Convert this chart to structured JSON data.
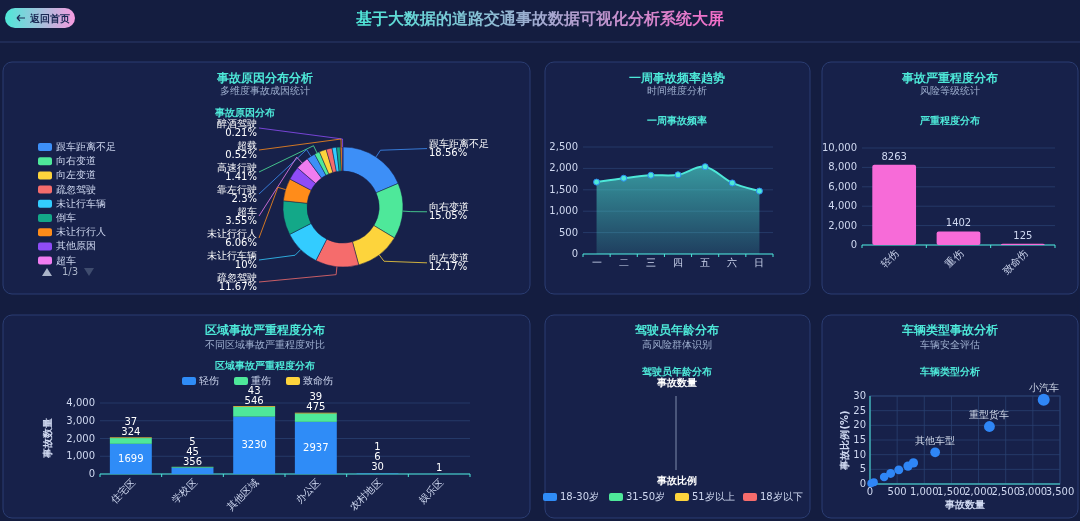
{
  "chart_data": [
    {
      "type": "other",
      "title": "基于大数据的道路交通事故数据可视化分析系统大屏",
      "annotations": [
        "返回首页"
      ]
    },
    {
      "type": "donut",
      "title": "事故原因分布分析",
      "subtitle": "多维度事故成因统计",
      "annotations": [
        "事故原因分布",
        "1/3"
      ],
      "legend": "left",
      "categories": [
        "跟车距离不足",
        "向右变道",
        "向左变道",
        "疏忽驾驶",
        "未让行车辆",
        "倒车",
        "未让行行人",
        "其他原因",
        "超车",
        "靠左行驶",
        "高速行驶",
        null,
        null,
        null,
        null,
        "超载",
        "醉酒驾驶"
      ],
      "values": [
        18.56,
        15.05,
        12.17,
        11.67,
        10,
        9.2,
        6.06,
        3.6,
        3.55,
        2.3,
        1.41,
        1.9,
        1.6,
        1.2,
        1.0,
        0.52,
        0.21
      ],
      "value_labels": [
        "18.56%",
        "15.05%",
        "12.17%",
        "11.67%",
        "10%",
        null,
        "6.06%",
        null,
        "3.55%",
        "2.3%",
        "1.41%",
        null,
        null,
        null,
        null,
        "0.52%",
        "0.21%"
      ],
      "colors": [
        "#3d8ff7",
        "#4ee89a",
        "#fdd43c",
        "#f56c6c",
        "#33ccff",
        "#13a888",
        "#ff8c1a",
        "#8e4cf7",
        "#f07cf0",
        "#3d8ff7",
        "#4ee89a",
        "#fdd43c",
        "#f56c6c",
        "#33ccff",
        "#13a888",
        "#ff8c1a",
        "#8e4cf7"
      ]
    },
    {
      "type": "area",
      "title": "一周事故频率趋势",
      "subtitle": "时间维度分析",
      "annotations": [
        "一周事故频率"
      ],
      "grid": "y",
      "marker": "circle",
      "categories": [
        "一",
        "二",
        "三",
        "四",
        "五",
        "六",
        "日"
      ],
      "series": [
        {
          "color": "#4de8d8",
          "values": [
            1680,
            1770,
            1840,
            1850,
            2040,
            1660,
            1470
          ]
        }
      ],
      "ylim": [
        0,
        2500
      ],
      "yticks": [
        0,
        500,
        {
          "value": 1000,
          "label": "1,000"
        },
        {
          "value": 1500,
          "label": "1,500"
        },
        {
          "value": 2000,
          "label": "2,000"
        },
        {
          "value": 2500,
          "label": "2,500"
        }
      ]
    },
    {
      "type": "bar",
      "title": "事故严重程度分布",
      "subtitle": "风险等级统计",
      "annotations": [
        "严重程度分布"
      ],
      "grid": "y",
      "data_labels": true,
      "categories": [
        "轻伤",
        "重伤",
        "致命伤"
      ],
      "values": [
        8263,
        1402,
        125
      ],
      "color": "#f76bd8",
      "ylim": [
        0,
        10000
      ],
      "yticks": [
        0,
        {
          "value": 2000,
          "label": "2,000"
        },
        {
          "value": 4000,
          "label": "4,000"
        },
        {
          "value": 6000,
          "label": "6,000"
        },
        {
          "value": 8000,
          "label": "8,000"
        },
        {
          "value": 10000,
          "label": "10,000"
        }
      ]
    },
    {
      "type": "bar",
      "stacked": true,
      "title": "区域事故严重程度分布",
      "subtitle": "不同区域事故严重程度对比",
      "annotations": [
        "区域事故严重程度分布"
      ],
      "ylabel": "事故数量",
      "grid": "y",
      "legend": "top",
      "data_labels": true,
      "categories": [
        "住宅区",
        "学校区",
        "其他区域",
        "办公区",
        "农村地区",
        "娱乐区"
      ],
      "series": [
        {
          "name": "轻伤",
          "color": "#2f8cf7",
          "values": [
            1699,
            356,
            3230,
            2937,
            30,
            1
          ]
        },
        {
          "name": "重伤",
          "color": "#4ee89a",
          "values": [
            324,
            45,
            546,
            475,
            6,
            null
          ]
        },
        {
          "name": "致命伤",
          "color": "#fdd43c",
          "values": [
            37,
            5,
            43,
            39,
            1,
            null
          ]
        }
      ],
      "ylim": [
        0,
        4000
      ],
      "yticks": [
        0,
        {
          "value": 1000,
          "label": "1,000"
        },
        {
          "value": 2000,
          "label": "2,000"
        },
        {
          "value": 3000,
          "label": "3,000"
        },
        {
          "value": 4000,
          "label": "4,000"
        }
      ]
    },
    {
      "type": "other",
      "title": "驾驶员年龄分布",
      "subtitle": "高风险群体识别",
      "annotations": [
        "驾驶员年龄分布",
        "事故数量",
        "事故比例"
      ],
      "legend": "bottom",
      "series": [
        {
          "name": "18-30岁",
          "color": "#2f8cf7"
        },
        {
          "name": "31-50岁",
          "color": "#4ee89a"
        },
        {
          "name": "51岁以上",
          "color": "#fdd43c"
        },
        {
          "name": "18岁以下",
          "color": "#f56c6c"
        }
      ]
    },
    {
      "type": "bubble",
      "title": "车辆类型事故分析",
      "subtitle": "车辆安全评估",
      "xlabel": "事故数量",
      "ylabel": "事故比例(%)",
      "grid": true,
      "annotations": [
        "车辆类型分析",
        {
          "text": "小汽车",
          "x": 3200,
          "y": 28.7
        },
        {
          "text": "重型货车",
          "x": 2200,
          "y": 19.6
        },
        {
          "text": "其他车型",
          "x": 1200,
          "y": 10.8
        }
      ],
      "x": [
        20,
        70,
        260,
        380,
        530,
        700,
        800,
        1200,
        2200,
        3200
      ],
      "values": [
        0.2,
        0.6,
        2.4,
        3.6,
        4.8,
        6.1,
        7.2,
        10.8,
        19.6,
        28.7
      ],
      "sizes": [
        0.4,
        0.45,
        0.5,
        0.55,
        0.55,
        0.6,
        0.6,
        0.66,
        0.82,
        1
      ],
      "color": "#2f86f6",
      "xlim": [
        0,
        3500
      ],
      "xticks": [
        0,
        500,
        {
          "value": 1000,
          "label": "1,000"
        },
        {
          "value": 1500,
          "label": "1,500"
        },
        {
          "value": 2000,
          "label": "2,000"
        },
        {
          "value": 2500,
          "label": "2,500"
        },
        {
          "value": 3000,
          "label": "3,000"
        },
        {
          "value": 3500,
          "label": "3,500"
        }
      ],
      "ylim": [
        0,
        30
      ],
      "yticks": [
        0,
        5,
        10,
        15,
        20,
        25,
        30
      ]
    }
  ]
}
